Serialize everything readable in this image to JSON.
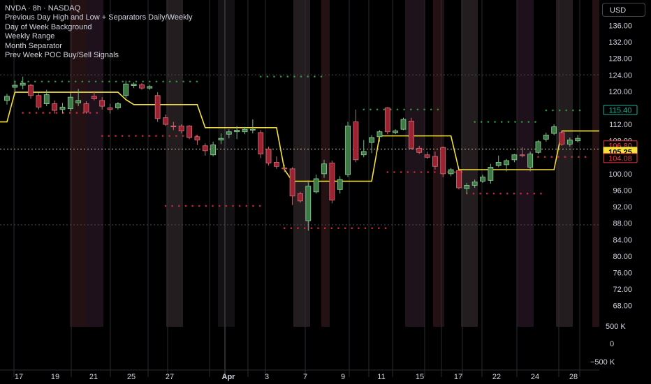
{
  "legend": {
    "symbol_line": "NVDA · 8h · NASDAQ",
    "indicators": [
      "Previous Day High and Low + Separators Daily/Weekly",
      "Day of Week Background",
      "Weekly Range",
      "Month Separator",
      "Prev Week POC Buy/Sell Signals"
    ]
  },
  "currency_button": "USD",
  "colors": {
    "background": "#000000",
    "up": "#3d7a45",
    "down": "#9b2230",
    "weekly_range": "#f5e13a",
    "prev_high_dots": "#2f8f3a",
    "prev_low_dots": "#c4273a",
    "axis_text": "#d1d4dc",
    "price_badge_red": "#f23645",
    "price_badge_yellow": "#f5e13a",
    "price_badge_green": "#22ab94"
  },
  "chart_data": {
    "type": "candlestick",
    "x_tick_labels": [
      "17",
      "19",
      "21",
      "25",
      "27",
      "Apr",
      "3",
      "7",
      "9",
      "11",
      "15",
      "17",
      "22",
      "24",
      "28"
    ],
    "y_tick_labels": [
      "136.00",
      "132.00",
      "128.00",
      "124.00",
      "120.00",
      "116.00",
      "112.00",
      "108.00",
      "104.00",
      "100.00",
      "96.00",
      "92.00",
      "88.00",
      "84.00",
      "80.00",
      "76.00",
      "72.00",
      "68.00"
    ],
    "volume_tick_labels": [
      "500 K",
      "0",
      "−500 K"
    ],
    "ylim": [
      66,
      140
    ],
    "price_badges": [
      {
        "label": "115.40",
        "value": 115.4,
        "style": "green"
      },
      {
        "label": "106.80",
        "value": 106.8,
        "style": "red"
      },
      {
        "label": "105.25",
        "value": 105.25,
        "style": "yellow"
      },
      {
        "label": "104.08",
        "value": 104.08,
        "style": "red"
      }
    ],
    "candles": [
      {
        "o": 117.8,
        "h": 119.4,
        "l": 116.8,
        "c": 118.8
      },
      {
        "o": 121.0,
        "h": 122.4,
        "l": 119.8,
        "c": 121.5
      },
      {
        "o": 121.5,
        "h": 123.6,
        "l": 120.5,
        "c": 122.0
      },
      {
        "o": 121.5,
        "h": 121.8,
        "l": 118.2,
        "c": 119.0
      },
      {
        "o": 119.0,
        "h": 119.6,
        "l": 115.6,
        "c": 116.2
      },
      {
        "o": 117.0,
        "h": 120.4,
        "l": 116.4,
        "c": 119.2
      },
      {
        "o": 117.0,
        "h": 117.8,
        "l": 114.6,
        "c": 115.4
      },
      {
        "o": 115.6,
        "h": 117.2,
        "l": 114.6,
        "c": 116.2
      },
      {
        "o": 115.8,
        "h": 119.6,
        "l": 115.2,
        "c": 118.6
      },
      {
        "o": 117.2,
        "h": 120.6,
        "l": 116.4,
        "c": 117.8
      },
      {
        "o": 117.0,
        "h": 117.6,
        "l": 114.6,
        "c": 115.0
      },
      {
        "o": 118.8,
        "h": 119.8,
        "l": 117.8,
        "c": 118.2
      },
      {
        "o": 117.8,
        "h": 118.6,
        "l": 115.6,
        "c": 116.4
      },
      {
        "o": 116.0,
        "h": 117.0,
        "l": 114.6,
        "c": 115.6
      },
      {
        "o": 116.0,
        "h": 117.4,
        "l": 115.6,
        "c": 117.0
      },
      {
        "o": 119.0,
        "h": 122.6,
        "l": 118.4,
        "c": 121.8
      },
      {
        "o": 121.4,
        "h": 122.2,
        "l": 120.8,
        "c": 121.8
      },
      {
        "o": 121.6,
        "h": 122.0,
        "l": 120.4,
        "c": 120.8
      },
      {
        "o": 120.8,
        "h": 121.6,
        "l": 120.4,
        "c": 121.2
      },
      {
        "o": 119.0,
        "h": 119.8,
        "l": 112.6,
        "c": 113.4
      },
      {
        "o": 113.6,
        "h": 114.4,
        "l": 111.6,
        "c": 112.0
      },
      {
        "o": 111.6,
        "h": 112.6,
        "l": 110.6,
        "c": 111.4
      },
      {
        "o": 111.6,
        "h": 112.0,
        "l": 109.8,
        "c": 110.4
      },
      {
        "o": 111.6,
        "h": 111.8,
        "l": 108.4,
        "c": 108.8
      },
      {
        "o": 109.0,
        "h": 109.4,
        "l": 107.0,
        "c": 108.2
      },
      {
        "o": 106.8,
        "h": 107.4,
        "l": 104.4,
        "c": 105.6
      },
      {
        "o": 104.6,
        "h": 107.8,
        "l": 104.2,
        "c": 107.0
      },
      {
        "o": 108.2,
        "h": 109.8,
        "l": 107.2,
        "c": 108.6
      },
      {
        "o": 109.6,
        "h": 110.8,
        "l": 108.6,
        "c": 110.2
      },
      {
        "o": 110.2,
        "h": 111.6,
        "l": 108.4,
        "c": 110.6
      },
      {
        "o": 110.2,
        "h": 111.4,
        "l": 109.6,
        "c": 110.8
      },
      {
        "o": 110.6,
        "h": 113.2,
        "l": 109.8,
        "c": 110.8
      },
      {
        "o": 110.0,
        "h": 110.6,
        "l": 103.8,
        "c": 104.8
      },
      {
        "o": 106.0,
        "h": 106.6,
        "l": 102.0,
        "c": 102.6
      },
      {
        "o": 102.8,
        "h": 104.2,
        "l": 101.2,
        "c": 101.8
      },
      {
        "o": 101.4,
        "h": 102.2,
        "l": 100.4,
        "c": 101.2
      },
      {
        "o": 101.2,
        "h": 101.6,
        "l": 92.4,
        "c": 94.6
      },
      {
        "o": 95.2,
        "h": 95.6,
        "l": 93.0,
        "c": 93.4
      },
      {
        "o": 88.6,
        "h": 98.4,
        "l": 86.2,
        "c": 97.0
      },
      {
        "o": 95.6,
        "h": 99.8,
        "l": 95.2,
        "c": 98.8
      },
      {
        "o": 100.0,
        "h": 103.4,
        "l": 99.0,
        "c": 102.4
      },
      {
        "o": 102.6,
        "h": 103.2,
        "l": 92.8,
        "c": 93.6
      },
      {
        "o": 96.2,
        "h": 99.4,
        "l": 95.2,
        "c": 98.6
      },
      {
        "o": 99.8,
        "h": 112.6,
        "l": 99.2,
        "c": 111.6
      },
      {
        "o": 112.6,
        "h": 115.6,
        "l": 102.8,
        "c": 103.4
      },
      {
        "o": 104.6,
        "h": 108.2,
        "l": 104.0,
        "c": 105.4
      },
      {
        "o": 107.6,
        "h": 109.4,
        "l": 105.0,
        "c": 108.8
      },
      {
        "o": 109.0,
        "h": 110.6,
        "l": 107.8,
        "c": 110.2
      },
      {
        "o": 116.0,
        "h": 116.2,
        "l": 109.6,
        "c": 110.2
      },
      {
        "o": 110.0,
        "h": 110.8,
        "l": 109.6,
        "c": 110.4
      },
      {
        "o": 110.8,
        "h": 113.6,
        "l": 110.6,
        "c": 113.2
      },
      {
        "o": 112.8,
        "h": 113.6,
        "l": 105.8,
        "c": 106.2
      },
      {
        "o": 106.2,
        "h": 106.8,
        "l": 104.8,
        "c": 105.2
      },
      {
        "o": 104.6,
        "h": 105.4,
        "l": 103.6,
        "c": 104.0
      },
      {
        "o": 104.2,
        "h": 105.4,
        "l": 101.0,
        "c": 101.8
      },
      {
        "o": 106.4,
        "h": 106.6,
        "l": 99.2,
        "c": 100.0
      },
      {
        "o": 100.0,
        "h": 101.4,
        "l": 99.4,
        "c": 101.0
      },
      {
        "o": 100.8,
        "h": 100.8,
        "l": 96.2,
        "c": 96.6
      },
      {
        "o": 96.4,
        "h": 97.8,
        "l": 95.2,
        "c": 97.2
      },
      {
        "o": 97.2,
        "h": 98.6,
        "l": 96.6,
        "c": 98.0
      },
      {
        "o": 98.2,
        "h": 99.8,
        "l": 97.8,
        "c": 99.2
      },
      {
        "o": 98.4,
        "h": 102.4,
        "l": 97.6,
        "c": 101.6
      },
      {
        "o": 102.0,
        "h": 104.4,
        "l": 101.6,
        "c": 102.8
      },
      {
        "o": 102.2,
        "h": 103.6,
        "l": 100.6,
        "c": 103.2
      },
      {
        "o": 103.4,
        "h": 104.8,
        "l": 102.8,
        "c": 104.6
      },
      {
        "o": 104.6,
        "h": 106.4,
        "l": 104.0,
        "c": 104.4
      },
      {
        "o": 101.6,
        "h": 105.4,
        "l": 100.6,
        "c": 104.8
      },
      {
        "o": 105.2,
        "h": 108.2,
        "l": 104.8,
        "c": 107.8
      },
      {
        "o": 108.4,
        "h": 110.0,
        "l": 107.8,
        "c": 109.4
      },
      {
        "o": 109.8,
        "h": 112.0,
        "l": 109.4,
        "c": 111.4
      },
      {
        "o": 110.0,
        "h": 110.4,
        "l": 106.8,
        "c": 107.2
      },
      {
        "o": 107.2,
        "h": 108.8,
        "l": 106.6,
        "c": 108.2
      },
      {
        "o": 108.0,
        "h": 109.4,
        "l": 107.6,
        "c": 108.6
      }
    ],
    "weekly_range_line": [
      [
        0,
        112.6
      ],
      [
        1,
        119.8
      ],
      [
        14,
        119.8
      ],
      [
        15,
        118.0
      ],
      [
        16,
        116.8
      ],
      [
        24,
        116.8
      ],
      [
        25,
        111.2
      ],
      [
        34,
        111.2
      ],
      [
        35,
        101.0
      ],
      [
        36,
        98.2
      ],
      [
        46,
        98.2
      ],
      [
        47,
        109.2
      ],
      [
        56,
        109.2
      ],
      [
        57,
        101.0
      ],
      [
        69,
        101.0
      ],
      [
        70,
        110.4
      ],
      [
        73,
        110.4
      ]
    ],
    "prev_high_dots": [
      {
        "from": 1,
        "to": 24,
        "value": 122.4
      },
      {
        "from": 32,
        "to": 40,
        "value": 123.6
      },
      {
        "from": 45,
        "to": 55,
        "value": 115.6
      },
      {
        "from": 59,
        "to": 67,
        "value": 112.6
      },
      {
        "from": 68,
        "to": 73,
        "value": 115.4
      }
    ],
    "prev_low_dots": [
      {
        "from": 2,
        "to": 12,
        "value": 114.8
      },
      {
        "from": 12,
        "to": 24,
        "value": 109.2
      },
      {
        "from": 20,
        "to": 32,
        "value": 92.2
      },
      {
        "from": 35,
        "to": 48,
        "value": 86.8
      },
      {
        "from": 48,
        "to": 58,
        "value": 100.4
      },
      {
        "from": 58,
        "to": 68,
        "value": 95.2
      },
      {
        "from": 67,
        "to": 73,
        "value": 104.1
      }
    ]
  }
}
